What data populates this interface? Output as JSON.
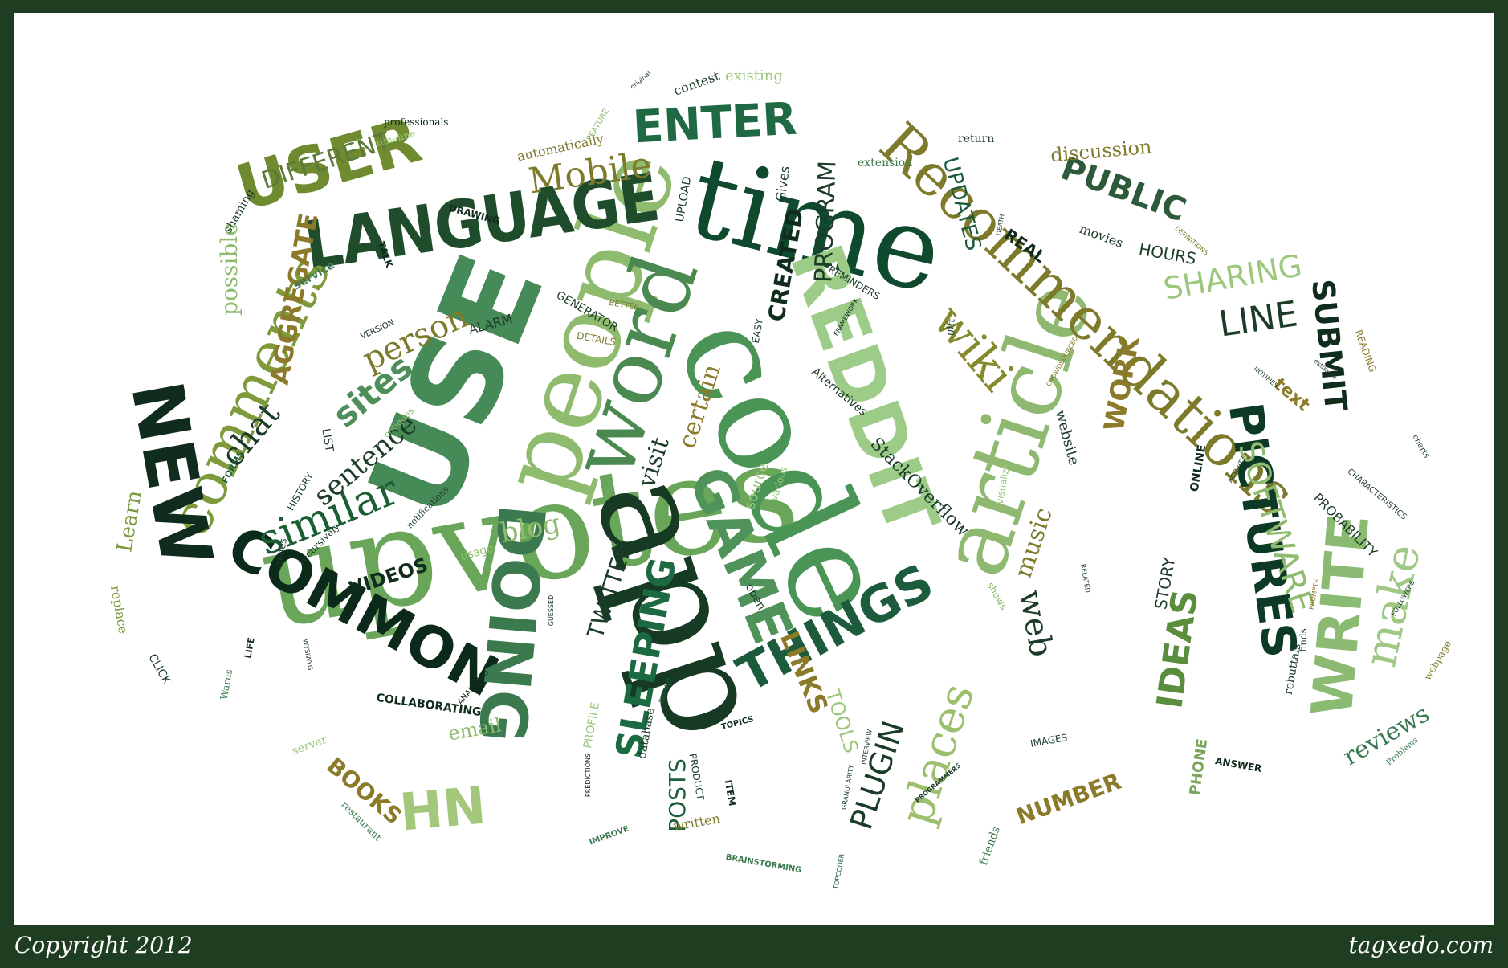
{
  "footer": {
    "copyright": "Copyright 2012",
    "site": "tagxedo.com"
  },
  "colors": {
    "frame": "#1f3d20",
    "background": "#ffffff",
    "dark": "#0f3d26",
    "mid": "#3f8a52",
    "light": "#93c07a",
    "olive": "#8a8a2e"
  },
  "words": [
    "upvotes",
    "code",
    "app",
    "people",
    "USE",
    "time",
    "word",
    "article",
    "REDDIT",
    "Recommendations",
    "LANGUAGE",
    "USER",
    "comments",
    "NEW",
    "COMMON",
    "DOING",
    "GAME",
    "THINGS",
    "PICTURES",
    "WRITE",
    "SLEEPING",
    "IDEAS",
    "make",
    "places",
    "similar",
    "HN",
    "Mobile",
    "ENTER",
    "wiki",
    "SOFTWARE",
    "SHARING",
    "LINE",
    "SUBMIT",
    "PUBLIC",
    "blog",
    "sites",
    "sentence",
    "chat",
    "person",
    "AGGREGATE",
    "DIFFERENT",
    "possible",
    "web",
    "music",
    "visit",
    "certain",
    "PROGRAM",
    "CREATED",
    "UPDATES",
    "WORK",
    "PLUGIN",
    "LINKS",
    "TOOLS",
    "TWITTER",
    "POSTS",
    "NUMBER",
    "BOOKS",
    "email",
    "Learn",
    "VIDEOS",
    "COLLABORATING",
    "reviews",
    "PHONE",
    "STORY",
    "Alternatives",
    "StackOverflow",
    "website",
    "text",
    "PROBABILITY",
    "ONLINE",
    "discussion",
    "HOURS",
    "REAL",
    "movies",
    "return",
    "extension",
    "existing",
    "contest",
    "automatically",
    "professionals",
    "timeline",
    "shaming",
    "service",
    "TALK",
    "DRAWING",
    "UPLOAD",
    "Gives",
    "GENERATOR",
    "ALARM",
    "DETAILS",
    "BETTER",
    "VERSION",
    "critiques",
    "LIST",
    "HISTORY",
    "FORMS",
    "slides",
    "recursively",
    "notifications",
    "usage",
    "source",
    "various",
    "replace",
    "CLICK",
    "Warns",
    "LIFE",
    "WYSIWYG",
    "ANALYTICS",
    "GUESSED",
    "PREDICTIONS",
    "PROFILE",
    "database",
    "EXPAND",
    "IMPROVE",
    "written",
    "PRODUCT",
    "ITEM",
    "TOPICS",
    "BRAINSTORMING",
    "TOPCODER",
    "GRANULARITY",
    "INTERVIEW",
    "PROGRAMMERS",
    "friends",
    "IMAGES",
    "ANSWER",
    "Problems",
    "webpage",
    "FOLLOWERS",
    "rebuttals",
    "finds",
    "PROMPTS",
    "CHARACTERISTICS",
    "charts",
    "ACTIVITY",
    "READING",
    "estimate",
    "NOTIFIES",
    "DEFINITIONS",
    "DEATH",
    "gift",
    "FRAMEWORK",
    "REMINDERS",
    "EASY",
    "CROWDSOURCED",
    "visualize",
    "RELATED",
    "shows",
    "open",
    "server",
    "restaurant",
    "OPEN",
    "original",
    "FEATURE",
    "Framework"
  ]
}
